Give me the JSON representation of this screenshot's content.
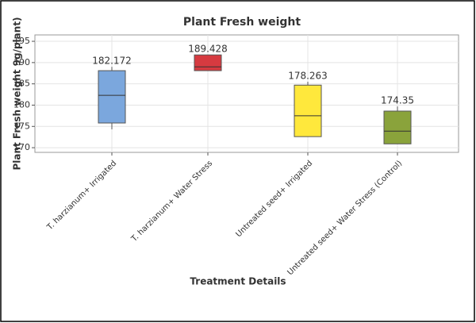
{
  "chart_data": {
    "type": "box",
    "title": "Plant Fresh weight",
    "x_label": "Treatment Details",
    "y_label": "Plant Fresh weight 9g/plant)",
    "categories": [
      "T. harzianum+ Irrigated",
      "T. harzianum+ Water Stress",
      "Untreated seed+ Irrigated",
      "Untreated seed+ Water Stress (Control)"
    ],
    "whisker_low": [
      174.3,
      188.1,
      172.6,
      170.9
    ],
    "q1": [
      175.8,
      188.1,
      172.6,
      170.9
    ],
    "median": [
      182.3,
      189.0,
      177.5,
      173.9
    ],
    "q3": [
      188.1,
      191.8,
      184.7,
      178.6
    ],
    "whisker_high": [
      189.0,
      191.8,
      185.5,
      179.7
    ],
    "data_labels": [
      182.172,
      189.428,
      178.263,
      174.35
    ],
    "colors": [
      "#7ba7dd",
      "#d63a40",
      "#ffe83c",
      "#8aa33b"
    ],
    "ylim": [
      168.9,
      196.5
    ],
    "yticks": [
      170,
      175,
      180,
      185,
      190,
      195
    ],
    "grid": true
  }
}
